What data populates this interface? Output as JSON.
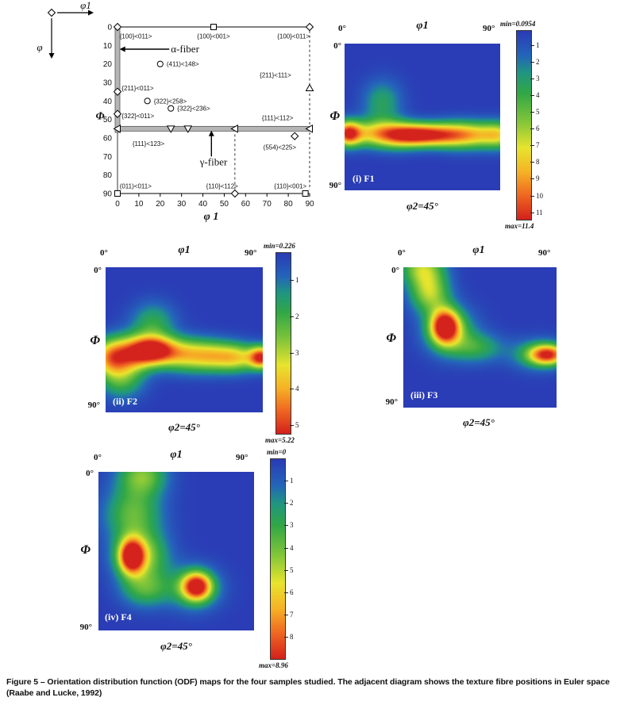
{
  "colormap": {
    "stops": [
      [
        0.0,
        42,
        60,
        182
      ],
      [
        0.13,
        36,
        102,
        186
      ],
      [
        0.22,
        32,
        150,
        130
      ],
      [
        0.33,
        50,
        168,
        70
      ],
      [
        0.48,
        130,
        198,
        58
      ],
      [
        0.62,
        232,
        229,
        46
      ],
      [
        0.75,
        246,
        178,
        38
      ],
      [
        0.87,
        240,
        105,
        34
      ],
      [
        1.0,
        212,
        34,
        28
      ]
    ],
    "background_blue": "#2a3cb6"
  },
  "euler_diagram": {
    "corner_axes": {
      "x_label": "φ1",
      "y_label": "φ"
    },
    "x_axis_label": "φ 1",
    "y_axis_label": "Φ",
    "x_ticks": [
      0,
      10,
      20,
      30,
      40,
      50,
      60,
      70,
      80,
      90
    ],
    "y_ticks": [
      0,
      10,
      20,
      30,
      40,
      50,
      60,
      70,
      80,
      90
    ],
    "alpha_fiber": {
      "label": "α-fiber",
      "phi1": 0,
      "phi_from": 0,
      "phi_to": 57,
      "label_phi1": 25,
      "label_phi": 12
    },
    "gamma_fiber": {
      "label": "γ-fiber",
      "phi": 55,
      "phi1_from": 0,
      "phi1_to": 90,
      "label_phi1": 45,
      "label_phi": 73
    },
    "dashed_lines": [
      {
        "phi1a": 90,
        "phia": 2,
        "phi1b": 90,
        "phib": 31
      },
      {
        "phi1a": 90,
        "phia": 36,
        "phi1b": 90,
        "phib": 53
      },
      {
        "phi1a": 90,
        "phia": 57,
        "phi1b": 90,
        "phib": 88
      },
      {
        "phi1a": 55,
        "phia": 58,
        "phi1b": 55,
        "phib": 88
      }
    ],
    "markers": [
      {
        "shape": "diamond",
        "phi1": 0,
        "phi": 0
      },
      {
        "shape": "square",
        "phi1": 45,
        "phi": 0
      },
      {
        "shape": "diamond",
        "phi1": 90,
        "phi": 0
      },
      {
        "shape": "circle",
        "phi1": 20,
        "phi": 20
      },
      {
        "shape": "diamond",
        "phi1": 0,
        "phi": 35
      },
      {
        "shape": "circle",
        "phi1": 14,
        "phi": 40
      },
      {
        "shape": "circle",
        "phi1": 25,
        "phi": 44
      },
      {
        "shape": "diamond",
        "phi1": 0,
        "phi": 47
      },
      {
        "shape": "triangle-up",
        "phi1": 90,
        "phi": 33
      },
      {
        "shape": "triangle-left",
        "phi1": 0,
        "phi": 55
      },
      {
        "shape": "triangle-down",
        "phi1": 25,
        "phi": 55
      },
      {
        "shape": "triangle-down",
        "phi1": 33,
        "phi": 55
      },
      {
        "shape": "triangle-left",
        "phi1": 55,
        "phi": 55
      },
      {
        "shape": "triangle-left",
        "phi1": 90,
        "phi": 55
      },
      {
        "shape": "diamond",
        "phi1": 83,
        "phi": 59
      },
      {
        "shape": "square",
        "phi1": 0,
        "phi": 90
      },
      {
        "shape": "diamond",
        "phi1": 55,
        "phi": 90
      },
      {
        "shape": "square",
        "phi1": 88,
        "phi": 90
      }
    ],
    "labels": [
      {
        "text": "{100}<011>",
        "phi1": 1,
        "phi": 5,
        "anchor": "start"
      },
      {
        "text": "{100}<001>",
        "phi1": 45,
        "phi": 5,
        "anchor": "middle"
      },
      {
        "text": "{100}<011>",
        "phi1": 90,
        "phi": 5,
        "anchor": "end"
      },
      {
        "text": "(411)<148>",
        "phi1": 23,
        "phi": 20,
        "anchor": "start"
      },
      {
        "text": "{211}<011>",
        "phi1": 2,
        "phi": 33,
        "anchor": "start"
      },
      {
        "text": "{211}<111>",
        "phi1": 74,
        "phi": 26,
        "anchor": "middle"
      },
      {
        "text": "{322}<258>",
        "phi1": 17,
        "phi": 40,
        "anchor": "start"
      },
      {
        "text": "{322}<236>",
        "phi1": 28,
        "phi": 44,
        "anchor": "start"
      },
      {
        "text": "{322}<011>",
        "phi1": 2,
        "phi": 48,
        "anchor": "start"
      },
      {
        "text": "{111}<112>",
        "phi1": 75,
        "phi": 49,
        "anchor": "middle"
      },
      {
        "text": "{111}<123>",
        "phi1": 7,
        "phi": 63,
        "anchor": "start"
      },
      {
        "text": "(554)<225>",
        "phi1": 76,
        "phi": 65,
        "anchor": "middle"
      },
      {
        "text": "(011)<011>",
        "phi1": 1,
        "phi": 86,
        "anchor": "start"
      },
      {
        "text": "{110}<112>",
        "phi1": 49,
        "phi": 86,
        "anchor": "middle"
      },
      {
        "text": "{110}<001>",
        "phi1": 81,
        "phi": 86,
        "anchor": "middle"
      }
    ]
  },
  "chart_data": [
    {
      "type": "heatmap",
      "id": "F1",
      "panel_label": "(i) F1",
      "phi1_label": "φ1",
      "x_left": "0°",
      "x_right": "90°",
      "y_top": "0°",
      "y_axis": "Φ",
      "y_bottom": "90°",
      "phi2_label": "φ2=45°",
      "x_range": [
        0,
        90
      ],
      "y_range": [
        0,
        90
      ],
      "scale_max": 11.4,
      "blobs": [
        {
          "x": 0.02,
          "y": 0.61,
          "sx": 0.06,
          "sy": 0.06,
          "a": 10.5
        },
        {
          "x": 0.5,
          "y": 0.62,
          "sx": 0.13,
          "sy": 0.055,
          "a": 11.0
        },
        {
          "x": 0.17,
          "y": 0.61,
          "sx": 0.1,
          "sy": 0.065,
          "a": 5.5
        },
        {
          "x": 0.33,
          "y": 0.62,
          "sx": 0.1,
          "sy": 0.065,
          "a": 6.0
        },
        {
          "x": 0.7,
          "y": 0.62,
          "sx": 0.1,
          "sy": 0.065,
          "a": 5.5
        },
        {
          "x": 0.85,
          "y": 0.62,
          "sx": 0.1,
          "sy": 0.065,
          "a": 5.5
        },
        {
          "x": 1.0,
          "y": 0.62,
          "sx": 0.08,
          "sy": 0.065,
          "a": 5.8
        },
        {
          "x": 0.24,
          "y": 0.4,
          "sx": 0.09,
          "sy": 0.11,
          "a": 3.2
        }
      ],
      "colorbar": {
        "min": 0.0954,
        "max": 11.4,
        "min_label": "min=0.0954",
        "max_label": "max=11.4",
        "ticks": [
          1,
          2,
          3,
          4,
          5,
          6,
          7,
          8,
          9,
          10,
          11
        ]
      }
    },
    {
      "type": "heatmap",
      "id": "F2",
      "panel_label": "(ii) F2",
      "phi1_label": "φ1",
      "x_left": "0°",
      "x_right": "90°",
      "y_top": "0°",
      "y_axis": "Φ",
      "y_bottom": "90°",
      "phi2_label": "φ2=45°",
      "x_range": [
        0,
        90
      ],
      "y_range": [
        0,
        90
      ],
      "scale_max": 5.22,
      "blobs": [
        {
          "x": 0.3,
          "y": 0.57,
          "sx": 0.1,
          "sy": 0.07,
          "a": 5.0
        },
        {
          "x": 0.99,
          "y": 0.62,
          "sx": 0.055,
          "sy": 0.055,
          "a": 4.8
        },
        {
          "x": 0.02,
          "y": 0.62,
          "sx": 0.08,
          "sy": 0.09,
          "a": 3.0
        },
        {
          "x": 0.15,
          "y": 0.6,
          "sx": 0.1,
          "sy": 0.09,
          "a": 3.2
        },
        {
          "x": 0.5,
          "y": 0.6,
          "sx": 0.11,
          "sy": 0.08,
          "a": 2.9
        },
        {
          "x": 0.68,
          "y": 0.61,
          "sx": 0.1,
          "sy": 0.075,
          "a": 2.7
        },
        {
          "x": 0.84,
          "y": 0.62,
          "sx": 0.09,
          "sy": 0.07,
          "a": 2.8
        },
        {
          "x": 0.3,
          "y": 0.38,
          "sx": 0.1,
          "sy": 0.1,
          "a": 1.6
        },
        {
          "x": 0.1,
          "y": 0.78,
          "sx": 0.1,
          "sy": 0.09,
          "a": 1.7
        }
      ],
      "colorbar": {
        "min": 0.226,
        "max": 5.22,
        "min_label": "min=0.226",
        "max_label": "max=5.22",
        "ticks": [
          1,
          2,
          3,
          4,
          5
        ]
      }
    },
    {
      "type": "heatmap",
      "id": "F3",
      "panel_label": "(iii) F3",
      "phi1_label": "φ1",
      "x_left": "0°",
      "x_right": "90°",
      "y_top": "0°",
      "y_axis": "Φ",
      "y_bottom": "90°",
      "phi2_label": "φ2=45°",
      "x_range": [
        0,
        90
      ],
      "y_range": [
        0,
        90
      ],
      "scale_max": 9.0,
      "blobs": [
        {
          "x": 0.12,
          "y": 0.0,
          "sx": 0.1,
          "sy": 0.09,
          "a": 4.5
        },
        {
          "x": 0.17,
          "y": 0.18,
          "sx": 0.09,
          "sy": 0.1,
          "a": 4.6
        },
        {
          "x": 0.27,
          "y": 0.42,
          "sx": 0.065,
          "sy": 0.085,
          "a": 8.6
        },
        {
          "x": 0.3,
          "y": 0.45,
          "sx": 0.12,
          "sy": 0.12,
          "a": 3.4
        },
        {
          "x": 0.48,
          "y": 0.57,
          "sx": 0.12,
          "sy": 0.075,
          "a": 2.6
        },
        {
          "x": 0.94,
          "y": 0.62,
          "sx": 0.085,
          "sy": 0.05,
          "a": 7.2
        },
        {
          "x": 0.88,
          "y": 0.62,
          "sx": 0.13,
          "sy": 0.08,
          "a": 2.6
        }
      ],
      "colorbar": null
    },
    {
      "type": "heatmap",
      "id": "F4",
      "panel_label": "(iv) F4",
      "phi1_label": "φ1",
      "x_left": "0°",
      "x_right": "90°",
      "y_top": "0°",
      "y_axis": "Φ",
      "y_bottom": "90°",
      "phi2_label": "φ2=45°",
      "x_range": [
        0,
        90
      ],
      "y_range": [
        0,
        90
      ],
      "scale_max": 8.96,
      "blobs": [
        {
          "x": 0.28,
          "y": 0.02,
          "sx": 0.11,
          "sy": 0.09,
          "a": 4.0
        },
        {
          "x": 0.22,
          "y": 0.26,
          "sx": 0.13,
          "sy": 0.12,
          "a": 3.6
        },
        {
          "x": 0.21,
          "y": 0.53,
          "sx": 0.055,
          "sy": 0.075,
          "a": 8.2
        },
        {
          "x": 0.27,
          "y": 0.53,
          "sx": 0.12,
          "sy": 0.11,
          "a": 4.6
        },
        {
          "x": 0.3,
          "y": 0.74,
          "sx": 0.11,
          "sy": 0.08,
          "a": 3.0
        },
        {
          "x": 0.63,
          "y": 0.72,
          "sx": 0.065,
          "sy": 0.06,
          "a": 7.8
        },
        {
          "x": 0.61,
          "y": 0.73,
          "sx": 0.12,
          "sy": 0.095,
          "a": 3.2
        }
      ],
      "colorbar": {
        "min": 0,
        "max": 8.96,
        "min_label": "min=0",
        "max_label": "max=8.96",
        "ticks": [
          1,
          2,
          3,
          4,
          5,
          6,
          7,
          8
        ]
      }
    }
  ],
  "caption": {
    "line1": "Figure 5 – Orientation distribution function (ODF) maps for the four samples studied. The adjacent diagram shows the texture fibre positions in Euler space",
    "line2": "(Raabe and Lucke, 1992)"
  }
}
